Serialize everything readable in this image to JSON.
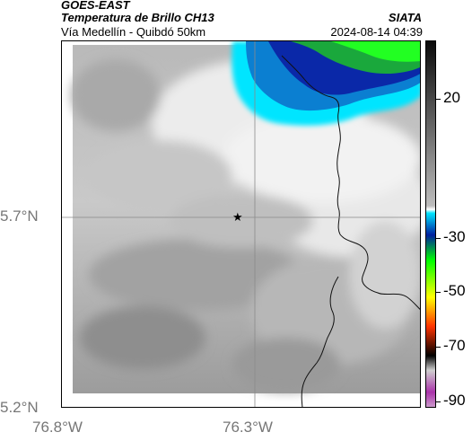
{
  "header": {
    "satellite": "GOES-EAST",
    "product": "Temperatura de Brillo CH13",
    "route": "Vía Medellín - Quibdó 50km",
    "agency": "SIATA",
    "timestamp": "2024-08-14 04:39"
  },
  "map": {
    "lat_ticks": [
      "5.7°N",
      "5.2°N"
    ],
    "lon_ticks": [
      "76.8°W",
      "76.3°W"
    ],
    "marker": "star-marker",
    "gridlines": true
  },
  "colorbar": {
    "ticks": [
      "20",
      "-30",
      "-50",
      "-70",
      "-90"
    ],
    "colors": [
      "#0a0a0a",
      "#bdbdbd",
      "#ffffff",
      "#00e5ff",
      "#0020a0",
      "#00ff00",
      "#ffff00",
      "#ff3300",
      "#000000",
      "#aa33aa"
    ]
  }
}
